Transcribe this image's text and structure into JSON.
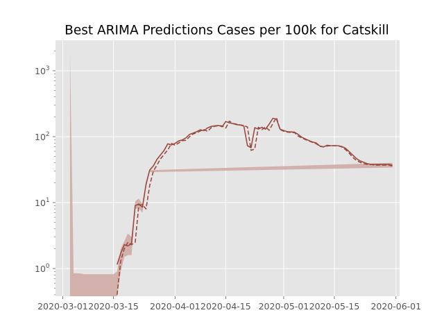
{
  "chart_data": {
    "type": "line",
    "title": "Best ARIMA Predictions Cases per 100k for Catskill",
    "xlabel": "",
    "ylabel": "",
    "y_scale": "log",
    "ylim": [
      0.38,
      2900
    ],
    "xlim": [
      "2020-02-28",
      "2020-06-02"
    ],
    "grid": true,
    "legend": "none",
    "colors": {
      "background": "#e5e5e5",
      "grid": "#ffffff",
      "line": "#9b4a40",
      "band": "#cfa7a2"
    },
    "x_ticks": [
      "2020-03-01",
      "2020-03-15",
      "2020-04-01",
      "2020-04-15",
      "2020-05-01",
      "2020-05-15",
      "2020-06-01"
    ],
    "y_ticks": [
      {
        "value": 1,
        "label": "10",
        "exp": "0"
      },
      {
        "value": 10,
        "label": "10",
        "exp": "1"
      },
      {
        "value": 100,
        "label": "10",
        "exp": "2"
      },
      {
        "value": 1000,
        "label": "10",
        "exp": "3"
      }
    ],
    "series": [
      {
        "style": "solid",
        "x": [
          "2020-03-16",
          "2020-03-17",
          "2020-03-18",
          "2020-03-19",
          "2020-03-20",
          "2020-03-21",
          "2020-03-22",
          "2020-03-23",
          "2020-03-24",
          "2020-03-25",
          "2020-03-26",
          "2020-03-27",
          "2020-03-28",
          "2020-03-29",
          "2020-03-30",
          "2020-03-31",
          "2020-04-01",
          "2020-04-02",
          "2020-04-03",
          "2020-04-04",
          "2020-04-05",
          "2020-04-06",
          "2020-04-07",
          "2020-04-08",
          "2020-04-09",
          "2020-04-10",
          "2020-04-11",
          "2020-04-12",
          "2020-04-13",
          "2020-04-14",
          "2020-04-15",
          "2020-04-16",
          "2020-04-17",
          "2020-04-18",
          "2020-04-19",
          "2020-04-20",
          "2020-04-21",
          "2020-04-22",
          "2020-04-23",
          "2020-04-24",
          "2020-04-25",
          "2020-04-26",
          "2020-04-27",
          "2020-04-28",
          "2020-04-29",
          "2020-04-30",
          "2020-05-01",
          "2020-05-02",
          "2020-05-03",
          "2020-05-04",
          "2020-05-05",
          "2020-05-06",
          "2020-05-07",
          "2020-05-08",
          "2020-05-09",
          "2020-05-10",
          "2020-05-11",
          "2020-05-12",
          "2020-05-13",
          "2020-05-14",
          "2020-05-15",
          "2020-05-16",
          "2020-05-17",
          "2020-05-18",
          "2020-05-19",
          "2020-05-20",
          "2020-05-21",
          "2020-05-22",
          "2020-05-23",
          "2020-05-24",
          "2020-05-25",
          "2020-05-26",
          "2020-05-27",
          "2020-05-28",
          "2020-05-29",
          "2020-05-30",
          "2020-05-31"
        ],
        "y": [
          1.15,
          1.7,
          2.3,
          2.2,
          2.4,
          9.0,
          9.5,
          8.5,
          19,
          31,
          36,
          45,
          53,
          62,
          78,
          75,
          79,
          86,
          89,
          96,
          108,
          113,
          119,
          127,
          123,
          136,
          143,
          146,
          148,
          141,
          170,
          162,
          158,
          152,
          150,
          145,
          73,
          68,
          137,
          130,
          139,
          130,
          155,
          190,
          185,
          130,
          124,
          119,
          118,
          117,
          108,
          98,
          92,
          87,
          83,
          80,
          72,
          70,
          74,
          73,
          73,
          73,
          71,
          67,
          60,
          53,
          47,
          43,
          41,
          39,
          38,
          38,
          38,
          38,
          38,
          38,
          37
        ]
      },
      {
        "style": "dashed",
        "x": [
          "2020-03-16",
          "2020-03-17",
          "2020-03-18",
          "2020-03-19",
          "2020-03-20",
          "2020-03-21",
          "2020-03-22",
          "2020-03-23",
          "2020-03-24",
          "2020-03-25",
          "2020-03-26",
          "2020-03-27",
          "2020-03-28",
          "2020-03-29",
          "2020-03-30",
          "2020-03-31",
          "2020-04-01",
          "2020-04-02",
          "2020-04-03",
          "2020-04-04",
          "2020-04-05",
          "2020-04-06",
          "2020-04-07",
          "2020-04-08",
          "2020-04-09",
          "2020-04-10",
          "2020-04-11",
          "2020-04-12",
          "2020-04-13",
          "2020-04-14",
          "2020-04-15",
          "2020-04-16",
          "2020-04-17",
          "2020-04-18",
          "2020-04-19",
          "2020-04-20",
          "2020-04-21",
          "2020-04-22",
          "2020-04-23",
          "2020-04-24",
          "2020-04-25",
          "2020-04-26",
          "2020-04-27",
          "2020-04-28",
          "2020-04-29",
          "2020-04-30",
          "2020-05-01",
          "2020-05-02",
          "2020-05-03",
          "2020-05-04",
          "2020-05-05",
          "2020-05-06",
          "2020-05-07",
          "2020-05-08",
          "2020-05-09",
          "2020-05-10",
          "2020-05-11",
          "2020-05-12",
          "2020-05-13",
          "2020-05-14",
          "2020-05-15",
          "2020-05-16",
          "2020-05-17",
          "2020-05-18",
          "2020-05-19",
          "2020-05-20",
          "2020-05-21",
          "2020-05-22",
          "2020-05-23",
          "2020-05-24",
          "2020-05-25",
          "2020-05-26",
          "2020-05-27",
          "2020-05-28",
          "2020-05-29",
          "2020-05-30",
          "2020-05-31"
        ],
        "y": [
          0.4,
          1.3,
          2.0,
          2.5,
          2.3,
          2.5,
          9.2,
          9.3,
          8.0,
          18,
          30,
          37,
          46,
          54,
          63,
          79,
          74,
          80,
          87,
          88,
          100,
          110,
          115,
          122,
          128,
          120,
          137,
          144,
          147,
          146,
          135,
          172,
          158,
          155,
          150,
          148,
          140,
          62,
          65,
          139,
          128,
          140,
          125,
          158,
          195,
          128,
          121,
          117,
          116,
          115,
          102,
          96,
          90,
          86,
          82,
          78,
          71,
          70,
          72,
          73,
          73,
          73,
          70,
          64,
          57,
          49,
          44,
          41,
          39,
          38,
          38,
          37,
          37,
          37,
          37,
          37,
          36
        ]
      }
    ],
    "confidence_band": {
      "x": [
        "2020-03-03",
        "2020-03-03",
        "2020-03-04",
        "2020-03-06",
        "2020-03-07",
        "2020-03-10",
        "2020-03-12",
        "2020-03-15",
        "2020-03-16",
        "2020-03-17",
        "2020-03-18",
        "2020-03-19",
        "2020-03-20",
        "2020-03-21",
        "2020-03-22",
        "2020-03-23",
        "2020-03-24",
        "2020-03-25",
        "2020-05-31"
      ],
      "upper": [
        0.38,
        1900,
        0.85,
        0.84,
        0.82,
        0.82,
        0.82,
        0.82,
        0.9,
        2.0,
        2.6,
        3.4,
        3.0,
        10.5,
        11.5,
        9.5,
        20,
        31,
        40
      ],
      "lower": [
        0.38,
        0.38,
        0.38,
        0.38,
        0.38,
        0.38,
        0.38,
        0.38,
        0.38,
        0.9,
        1.5,
        1.6,
        1.6,
        8.0,
        8.2,
        7.0,
        17,
        29,
        34
      ]
    }
  }
}
